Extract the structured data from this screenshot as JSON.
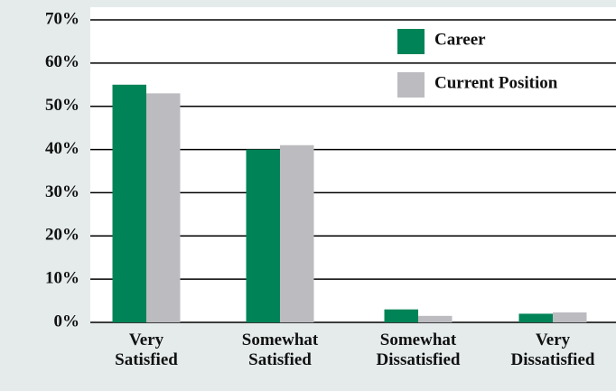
{
  "chart_data": {
    "type": "bar",
    "categories": [
      "Very Satisfied",
      "Somewhat Satisfied",
      "Somewhat Dissatisfied",
      "Very Dissatisfied"
    ],
    "series": [
      {
        "name": "Career",
        "color": "#008457",
        "values": [
          55,
          40,
          3,
          2
        ]
      },
      {
        "name": "Current Position",
        "color": "#bcbcc0",
        "values": [
          53,
          41,
          1.5,
          2.3
        ]
      }
    ],
    "ylim": [
      0,
      70
    ],
    "yticks": [
      {
        "value": 0,
        "label": "0%"
      },
      {
        "value": 10,
        "label": "10%"
      },
      {
        "value": 20,
        "label": "20%"
      },
      {
        "value": 30,
        "label": "30%"
      },
      {
        "value": 40,
        "label": "40%"
      },
      {
        "value": 50,
        "label": "50%"
      },
      {
        "value": 60,
        "label": "60%"
      },
      {
        "value": 70,
        "label": "70%"
      }
    ],
    "grid": true,
    "legend": "top-right"
  }
}
